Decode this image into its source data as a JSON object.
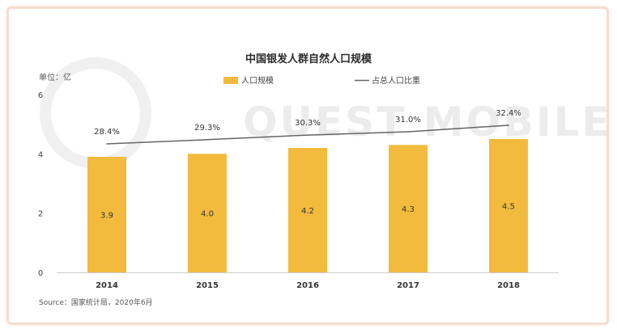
{
  "chart_data": {
    "type": "bar",
    "title": "中国银发人群自然人口规模",
    "unit_label": "单位：亿",
    "categories": [
      "2014",
      "2015",
      "2016",
      "2017",
      "2018"
    ],
    "series": [
      {
        "name": "人口规模",
        "kind": "bar",
        "values": [
          3.9,
          4.0,
          4.2,
          4.3,
          4.5
        ],
        "labels": [
          "3.9",
          "4.0",
          "4.2",
          "4.3",
          "4.5"
        ],
        "color": "#f2bb3d"
      },
      {
        "name": "占总人口比重",
        "kind": "line",
        "values": [
          28.4,
          29.3,
          30.3,
          31.0,
          32.4
        ],
        "labels": [
          "28.4%",
          "29.3%",
          "30.3%",
          "31.0%",
          "32.4%"
        ],
        "color": "#666666"
      }
    ],
    "y_ticks": [
      "0",
      "2",
      "4",
      "6"
    ],
    "ylim": [
      0,
      6
    ],
    "legend_position": "top-center",
    "grid": false,
    "source": "Source：国家统计局，2020年6月",
    "watermark": "QUEST MOBILE"
  }
}
